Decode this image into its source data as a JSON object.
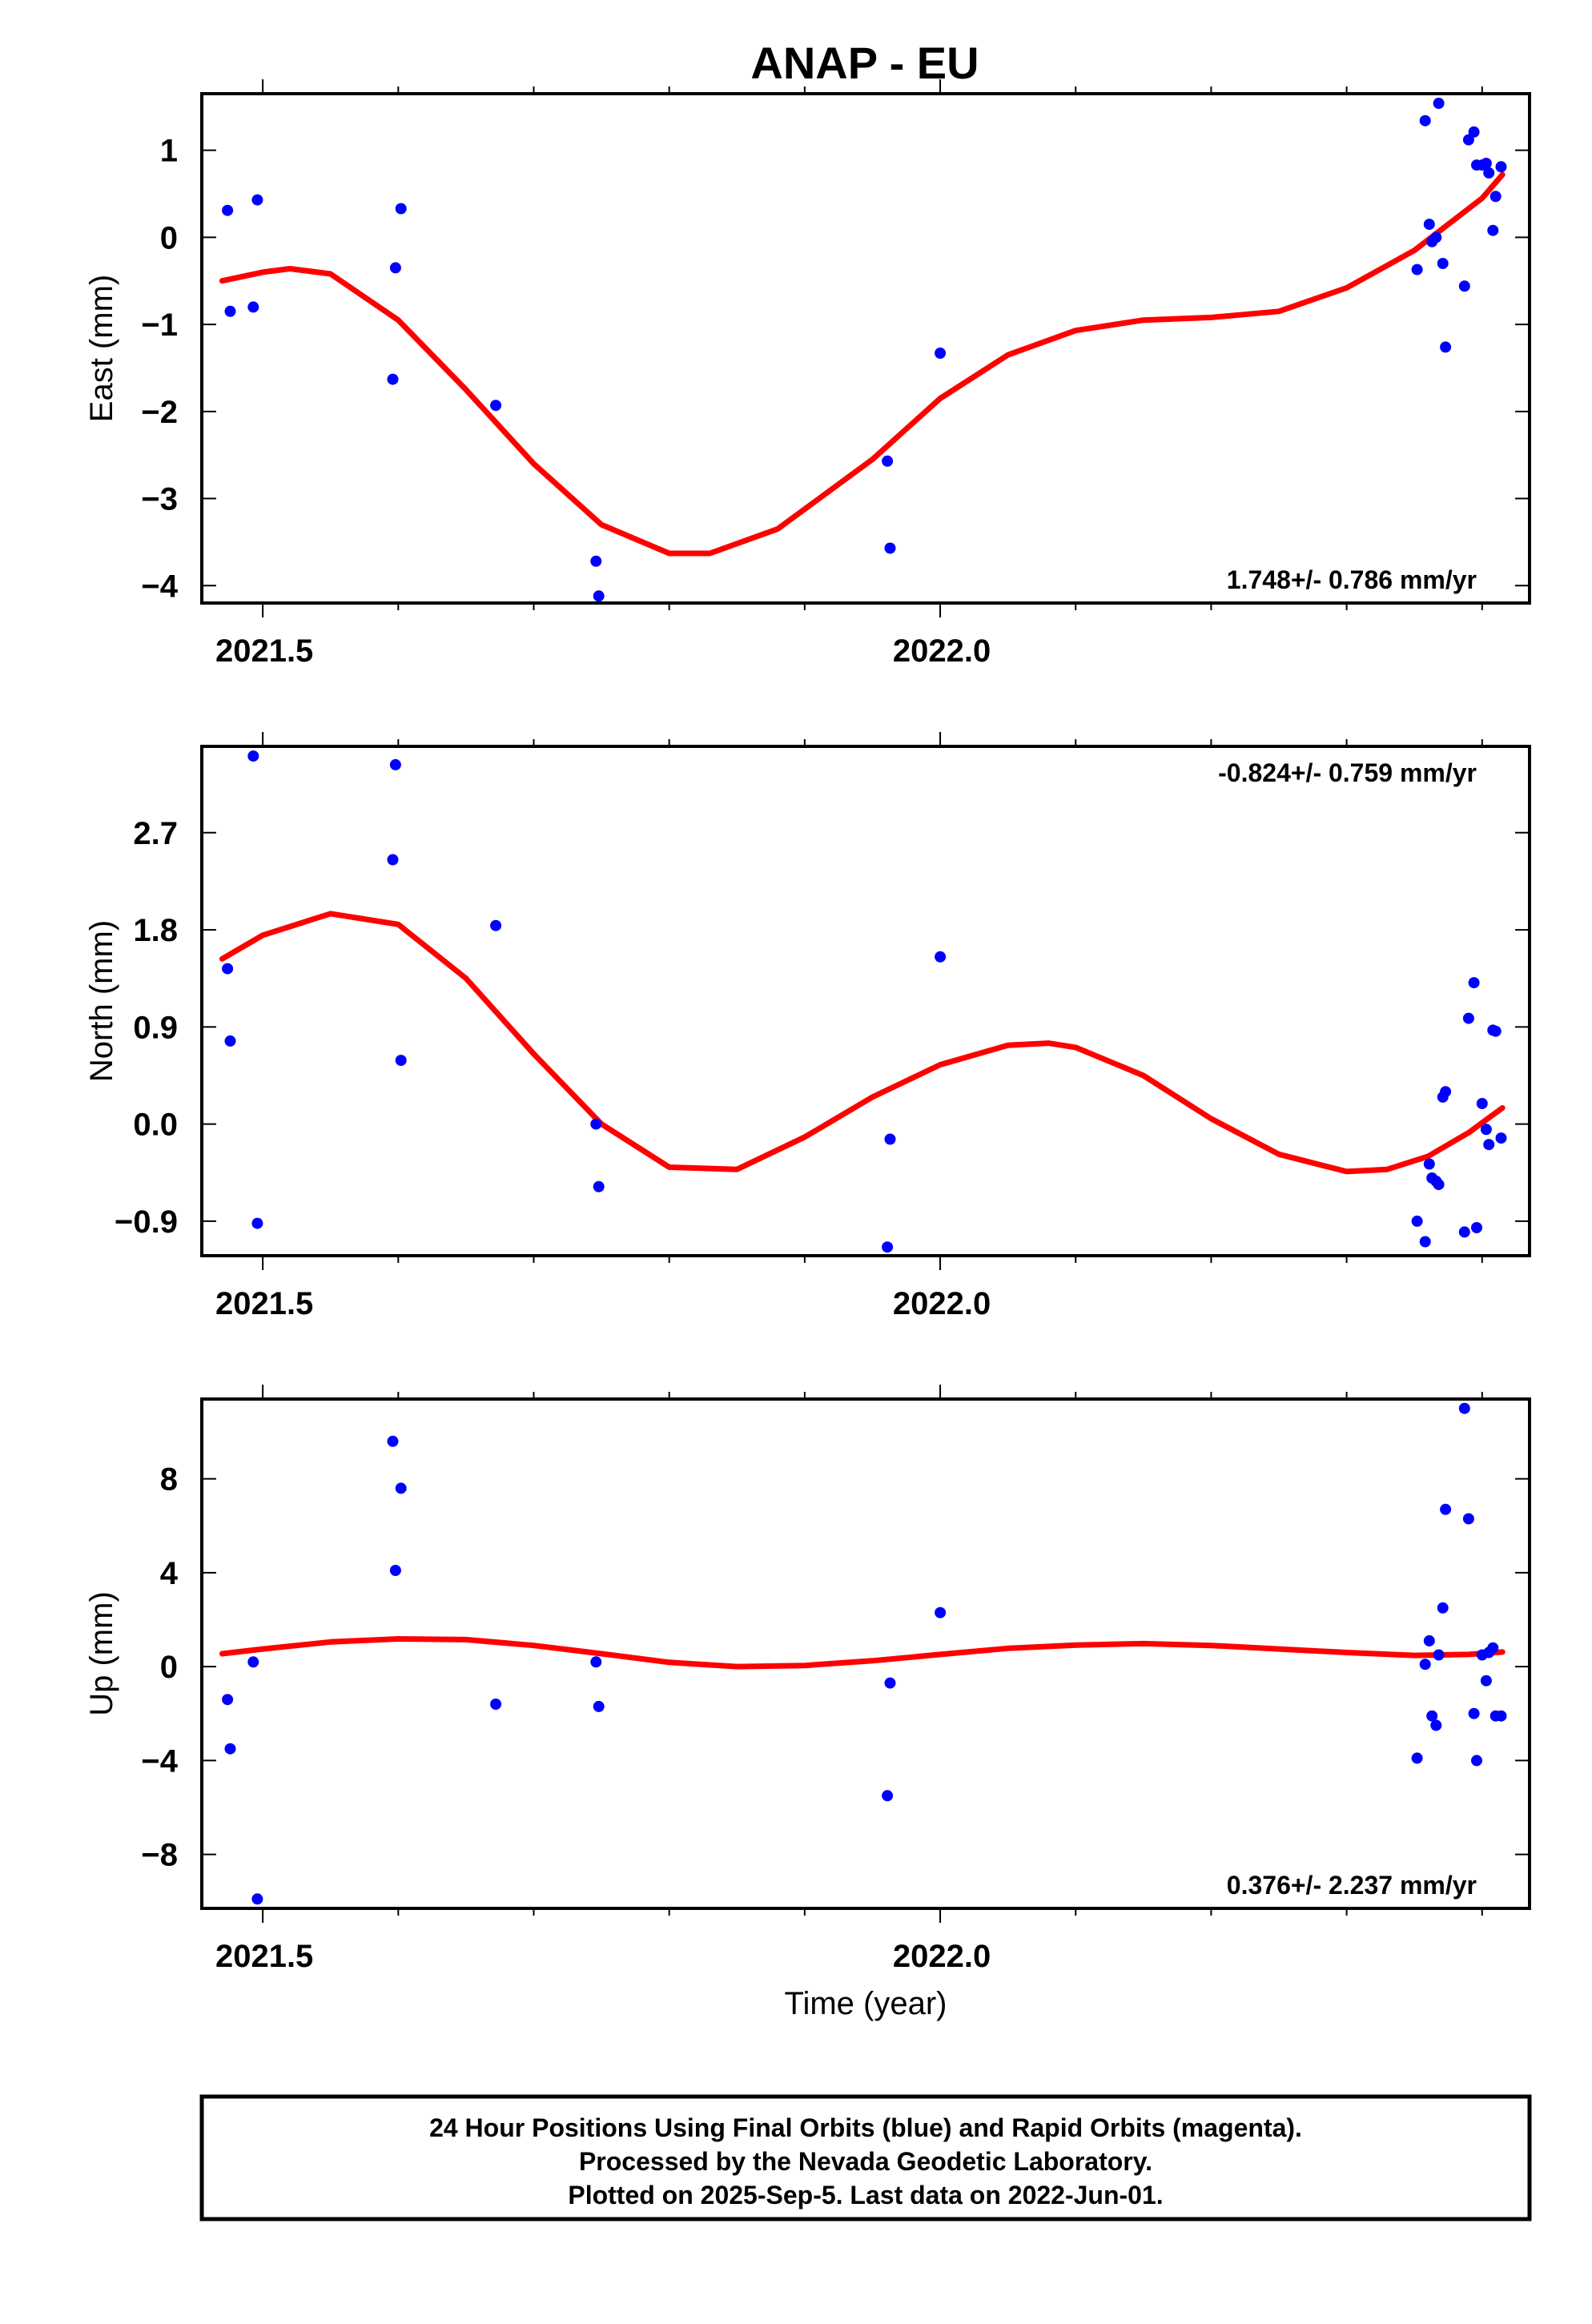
{
  "title": "ANAP - EU",
  "footer": {
    "lines": [
      "24 Hour Positions Using Final Orbits (blue) and Rapid Orbits (magenta).",
      "Processed by the Nevada Geodetic Laboratory.",
      "Plotted on 2025-Sep-5. Last data on 2022-Jun-01."
    ]
  },
  "colors": {
    "points": "#0000ff",
    "fit": "#ff0000",
    "frame": "#000000"
  },
  "chart_data": [
    {
      "type": "scatter",
      "ylabel": "East (mm)",
      "xlabel": "",
      "xlim": [
        2021.455,
        2022.435
      ],
      "ylim": [
        -4.2,
        1.65
      ],
      "xticks": [
        {
          "v": 2021.5,
          "label": "2021.5"
        },
        {
          "v": 2022.0,
          "label": "2022.0"
        }
      ],
      "xminor": [
        2021.6,
        2021.7,
        2021.8,
        2021.9,
        2022.1,
        2022.2,
        2022.3,
        2022.4
      ],
      "yticks": [
        {
          "v": 1,
          "label": "1"
        },
        {
          "v": 0,
          "label": "0"
        },
        {
          "v": -1,
          "label": "−1"
        },
        {
          "v": -2,
          "label": "−2"
        },
        {
          "v": -3,
          "label": "−3"
        },
        {
          "v": -4,
          "label": "−4"
        }
      ],
      "rate": "1.748+/- 0.786 mm/yr",
      "rate_position": "bottom-right",
      "points": [
        [
          2021.474,
          0.31
        ],
        [
          2021.476,
          -0.85
        ],
        [
          2021.493,
          -0.8
        ],
        [
          2021.496,
          0.43
        ],
        [
          2021.596,
          -1.63
        ],
        [
          2021.598,
          -0.35
        ],
        [
          2021.602,
          0.33
        ],
        [
          2021.672,
          -1.93
        ],
        [
          2021.746,
          -3.72
        ],
        [
          2021.748,
          -4.12
        ],
        [
          2021.961,
          -2.57
        ],
        [
          2021.963,
          -3.57
        ],
        [
          2022.0,
          -1.33
        ],
        [
          2022.352,
          -0.37
        ],
        [
          2022.358,
          1.34
        ],
        [
          2022.361,
          0.15
        ],
        [
          2022.363,
          -0.05
        ],
        [
          2022.366,
          0.0
        ],
        [
          2022.368,
          1.54
        ],
        [
          2022.371,
          -0.3
        ],
        [
          2022.373,
          -1.26
        ],
        [
          2022.387,
          -0.56
        ],
        [
          2022.39,
          1.12
        ],
        [
          2022.394,
          1.21
        ],
        [
          2022.396,
          0.83
        ],
        [
          2022.4,
          0.83
        ],
        [
          2022.403,
          0.85
        ],
        [
          2022.405,
          0.74
        ],
        [
          2022.408,
          0.08
        ],
        [
          2022.41,
          0.47
        ],
        [
          2022.414,
          0.81
        ]
      ],
      "fit": [
        [
          2021.47,
          -0.5
        ],
        [
          2021.5,
          -0.4
        ],
        [
          2021.52,
          -0.36
        ],
        [
          2021.55,
          -0.42
        ],
        [
          2021.6,
          -0.95
        ],
        [
          2021.65,
          -1.75
        ],
        [
          2021.7,
          -2.6
        ],
        [
          2021.75,
          -3.3
        ],
        [
          2021.8,
          -3.63
        ],
        [
          2021.83,
          -3.63
        ],
        [
          2021.88,
          -3.35
        ],
        [
          2021.95,
          -2.55
        ],
        [
          2022.0,
          -1.85
        ],
        [
          2022.05,
          -1.35
        ],
        [
          2022.1,
          -1.07
        ],
        [
          2022.15,
          -0.95
        ],
        [
          2022.2,
          -0.92
        ],
        [
          2022.25,
          -0.85
        ],
        [
          2022.3,
          -0.58
        ],
        [
          2022.35,
          -0.15
        ],
        [
          2022.4,
          0.45
        ],
        [
          2022.415,
          0.72
        ]
      ]
    },
    {
      "type": "scatter",
      "ylabel": "North (mm)",
      "xlabel": "",
      "xlim": [
        2021.455,
        2022.435
      ],
      "ylim": [
        -1.22,
        3.5
      ],
      "xticks": [
        {
          "v": 2021.5,
          "label": "2021.5"
        },
        {
          "v": 2022.0,
          "label": "2022.0"
        }
      ],
      "xminor": [
        2021.6,
        2021.7,
        2021.8,
        2021.9,
        2022.1,
        2022.2,
        2022.3,
        2022.4
      ],
      "yticks": [
        {
          "v": 2.7,
          "label": "2.7"
        },
        {
          "v": 1.8,
          "label": "1.8"
        },
        {
          "v": 0.9,
          "label": "0.9"
        },
        {
          "v": 0.0,
          "label": "0.0"
        },
        {
          "v": -0.9,
          "label": "−0.9"
        }
      ],
      "rate": "-0.824+/- 0.759 mm/yr",
      "rate_position": "top-right",
      "points": [
        [
          2021.474,
          1.44
        ],
        [
          2021.476,
          0.77
        ],
        [
          2021.493,
          3.41
        ],
        [
          2021.496,
          -0.92
        ],
        [
          2021.596,
          2.45
        ],
        [
          2021.598,
          3.33
        ],
        [
          2021.602,
          0.59
        ],
        [
          2021.672,
          1.84
        ],
        [
          2021.746,
          0.0
        ],
        [
          2021.748,
          -0.58
        ],
        [
          2021.961,
          -1.14
        ],
        [
          2021.963,
          -0.14
        ],
        [
          2022.0,
          1.55
        ],
        [
          2022.352,
          -0.9
        ],
        [
          2022.358,
          -1.09
        ],
        [
          2022.361,
          -0.37
        ],
        [
          2022.363,
          -0.5
        ],
        [
          2022.366,
          -0.53
        ],
        [
          2022.368,
          -0.56
        ],
        [
          2022.371,
          0.25
        ],
        [
          2022.373,
          0.3
        ],
        [
          2022.387,
          -1.0
        ],
        [
          2022.39,
          0.98
        ],
        [
          2022.394,
          1.31
        ],
        [
          2022.396,
          -0.96
        ],
        [
          2022.4,
          0.19
        ],
        [
          2022.403,
          -0.05
        ],
        [
          2022.405,
          -0.19
        ],
        [
          2022.408,
          0.87
        ],
        [
          2022.41,
          0.86
        ],
        [
          2022.414,
          -0.13
        ]
      ],
      "fit": [
        [
          2021.47,
          1.53
        ],
        [
          2021.5,
          1.75
        ],
        [
          2021.55,
          1.95
        ],
        [
          2021.6,
          1.85
        ],
        [
          2021.65,
          1.35
        ],
        [
          2021.7,
          0.65
        ],
        [
          2021.75,
          0.0
        ],
        [
          2021.8,
          -0.4
        ],
        [
          2021.85,
          -0.42
        ],
        [
          2021.9,
          -0.12
        ],
        [
          2021.95,
          0.25
        ],
        [
          2022.0,
          0.55
        ],
        [
          2022.05,
          0.73
        ],
        [
          2022.08,
          0.75
        ],
        [
          2022.1,
          0.71
        ],
        [
          2022.15,
          0.45
        ],
        [
          2022.2,
          0.05
        ],
        [
          2022.25,
          -0.28
        ],
        [
          2022.3,
          -0.44
        ],
        [
          2022.33,
          -0.42
        ],
        [
          2022.36,
          -0.3
        ],
        [
          2022.39,
          -0.08
        ],
        [
          2022.415,
          0.15
        ]
      ]
    },
    {
      "type": "scatter",
      "ylabel": "Up (mm)",
      "xlabel": "Time (year)",
      "xlim": [
        2021.455,
        2022.435
      ],
      "ylim": [
        -10.3,
        11.4
      ],
      "xticks": [
        {
          "v": 2021.5,
          "label": "2021.5"
        },
        {
          "v": 2022.0,
          "label": "2022.0"
        }
      ],
      "xminor": [
        2021.6,
        2021.7,
        2021.8,
        2021.9,
        2022.1,
        2022.2,
        2022.3,
        2022.4
      ],
      "yticks": [
        {
          "v": 8,
          "label": "8"
        },
        {
          "v": 4,
          "label": "4"
        },
        {
          "v": 0,
          "label": "0"
        },
        {
          "v": -4,
          "label": "−4"
        },
        {
          "v": -8,
          "label": "−8"
        }
      ],
      "rate": "0.376+/- 2.237 mm/yr",
      "rate_position": "bottom-right",
      "points": [
        [
          2021.474,
          -1.4
        ],
        [
          2021.476,
          -3.5
        ],
        [
          2021.493,
          0.2
        ],
        [
          2021.496,
          -9.9
        ],
        [
          2021.596,
          9.6
        ],
        [
          2021.598,
          4.1
        ],
        [
          2021.602,
          7.6
        ],
        [
          2021.672,
          -1.6
        ],
        [
          2021.746,
          0.2
        ],
        [
          2021.748,
          -1.7
        ],
        [
          2021.961,
          -5.5
        ],
        [
          2021.963,
          -0.7
        ],
        [
          2022.0,
          2.3
        ],
        [
          2022.352,
          -3.9
        ],
        [
          2022.358,
          0.1
        ],
        [
          2022.361,
          1.1
        ],
        [
          2022.363,
          -2.1
        ],
        [
          2022.366,
          -2.5
        ],
        [
          2022.368,
          0.5
        ],
        [
          2022.371,
          2.5
        ],
        [
          2022.373,
          6.7
        ],
        [
          2022.387,
          11.0
        ],
        [
          2022.39,
          6.3
        ],
        [
          2022.394,
          -2.0
        ],
        [
          2022.396,
          -4.0
        ],
        [
          2022.4,
          0.5
        ],
        [
          2022.403,
          -0.6
        ],
        [
          2022.405,
          0.6
        ],
        [
          2022.408,
          0.8
        ],
        [
          2022.41,
          -2.1
        ],
        [
          2022.414,
          -2.1
        ]
      ],
      "fit": [
        [
          2021.47,
          0.55
        ],
        [
          2021.5,
          0.75
        ],
        [
          2021.55,
          1.05
        ],
        [
          2021.6,
          1.18
        ],
        [
          2021.65,
          1.15
        ],
        [
          2021.7,
          0.9
        ],
        [
          2021.75,
          0.55
        ],
        [
          2021.8,
          0.18
        ],
        [
          2021.85,
          0.0
        ],
        [
          2021.9,
          0.05
        ],
        [
          2021.95,
          0.25
        ],
        [
          2022.0,
          0.52
        ],
        [
          2022.05,
          0.78
        ],
        [
          2022.1,
          0.92
        ],
        [
          2022.15,
          0.98
        ],
        [
          2022.2,
          0.9
        ],
        [
          2022.25,
          0.75
        ],
        [
          2022.3,
          0.6
        ],
        [
          2022.35,
          0.48
        ],
        [
          2022.39,
          0.52
        ],
        [
          2022.415,
          0.62
        ]
      ]
    }
  ]
}
